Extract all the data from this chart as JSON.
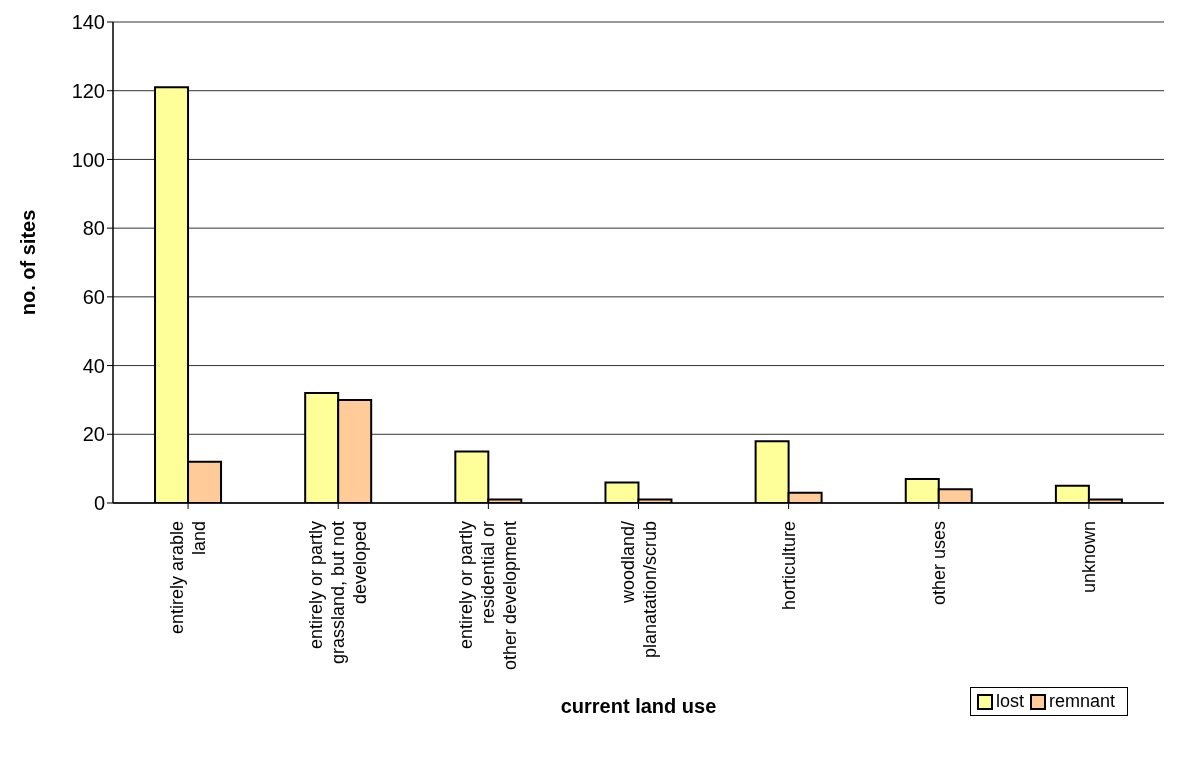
{
  "chart_data": {
    "type": "bar",
    "xlabel": "current land use",
    "ylabel": "no. of sites",
    "categories": [
      "entirely arable land",
      "entirely or partly grassland, but not developed",
      "entirely or partly residential or other development",
      "woodland/ planatation/scrub",
      "horticulture",
      "other uses",
      "unknown"
    ],
    "series": [
      {
        "name": "lost",
        "color": "#ffff99",
        "values": [
          121,
          32,
          15,
          6,
          18,
          7,
          5
        ]
      },
      {
        "name": "remnant",
        "color": "#ffcc99",
        "values": [
          12,
          30,
          1,
          1,
          3,
          4,
          1
        ]
      }
    ],
    "ylim": [
      0,
      140
    ],
    "yticks": [
      0,
      20,
      40,
      60,
      80,
      100,
      120,
      140
    ],
    "grid": "y",
    "legend": "bottom right"
  }
}
